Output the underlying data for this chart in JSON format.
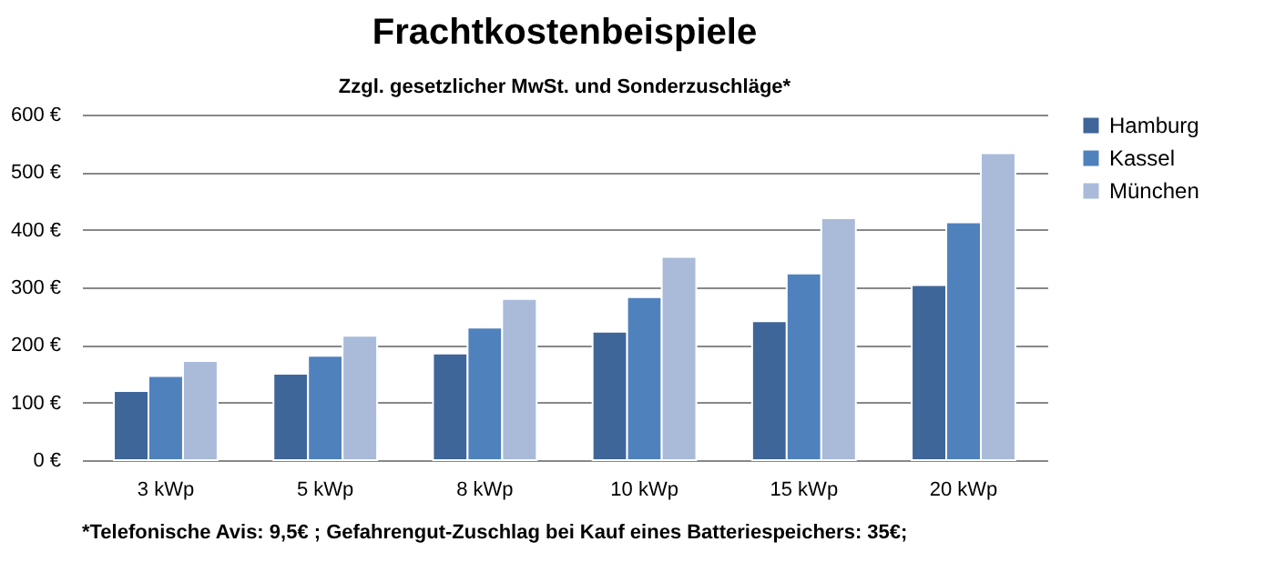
{
  "chart_data": {
    "type": "bar",
    "title": "Frachtkostenbeispiele",
    "subtitle": "Zzgl. gesetzlicher MwSt. und Sonderzuschläge*",
    "categories": [
      "3 kWp",
      "5 kWp",
      "8 kWp",
      "10 kWp",
      "15 kWp",
      "20 kWp"
    ],
    "series": [
      {
        "name": "Hamburg",
        "color": "#3f6699",
        "values": [
          120,
          150,
          185,
          223,
          241,
          304
        ]
      },
      {
        "name": "Kassel",
        "color": "#4f81bd",
        "values": [
          146,
          181,
          230,
          283,
          324,
          413
        ]
      },
      {
        "name": "München",
        "color": "#a9bbd9",
        "values": [
          172,
          216,
          280,
          353,
          420,
          533
        ]
      }
    ],
    "ylim": [
      0,
      600
    ],
    "yticks": [
      {
        "value": 0,
        "label": "0 €"
      },
      {
        "value": 100,
        "label": "100 €"
      },
      {
        "value": 200,
        "label": "200 €"
      },
      {
        "value": 300,
        "label": "300 €"
      },
      {
        "value": 400,
        "label": "400 €"
      },
      {
        "value": 500,
        "label": "500 €"
      },
      {
        "value": 600,
        "label": "600 €"
      }
    ],
    "grid": "y",
    "legend": "right",
    "annotations": [
      "*Telefonische Avis: 9,5€ ; Gefahrengut-Zuschlag bei Kauf eines Batteriespeichers: 35€;"
    ]
  }
}
